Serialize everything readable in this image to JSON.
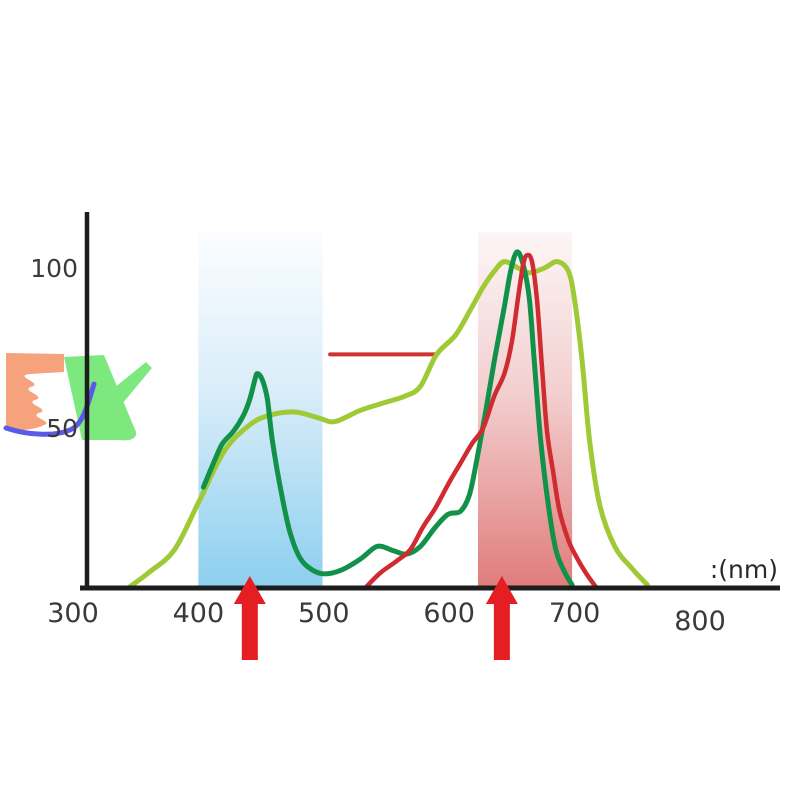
{
  "figure": {
    "x_unit_label": ":(nm)",
    "axis_color": "#1d1d1d",
    "tick_color": "#3a3a3a"
  },
  "watermark": {
    "orange": "#f6a27d",
    "green": "#7de87d",
    "blue": "#5b5ae8"
  },
  "chart_data": {
    "type": "line",
    "title": "",
    "xlabel": ":(nm)",
    "ylabel": "",
    "x_range": [
      300,
      800
    ],
    "y_range": [
      0,
      111
    ],
    "x_ticks": [
      300,
      400,
      500,
      600,
      700,
      800
    ],
    "y_ticks": [
      100,
      50
    ],
    "grid": false,
    "legend": "none",
    "bands": [
      {
        "name": "blue-light-band",
        "x_from": 400,
        "x_to": 499,
        "color_top": "#fbfdff",
        "color_mid": "#d9edf9",
        "color_bottom": "#8ccfee"
      },
      {
        "name": "red-light-band",
        "x_from": 623,
        "x_to": 698,
        "color_top": "#fdf6f6",
        "color_mid": "#f3cfcf",
        "color_bottom": "#e07c7c"
      }
    ],
    "series": [
      {
        "name": "yellow-green-curve",
        "color": "#9fca35",
        "stroke_width": 5,
        "points": [
          [
            344,
            0
          ],
          [
            361,
            5
          ],
          [
            381,
            12
          ],
          [
            401,
            27.5
          ],
          [
            421,
            43
          ],
          [
            441,
            51
          ],
          [
            457,
            54
          ],
          [
            477,
            55
          ],
          [
            497,
            53
          ],
          [
            509,
            52
          ],
          [
            529,
            55.5
          ],
          [
            549,
            58
          ],
          [
            565,
            60
          ],
          [
            577,
            63
          ],
          [
            590,
            73
          ],
          [
            605,
            79
          ],
          [
            617,
            87
          ],
          [
            627,
            94
          ],
          [
            636,
            99
          ],
          [
            644,
            102
          ],
          [
            655,
            100
          ],
          [
            664,
            98.5
          ],
          [
            676,
            100
          ],
          [
            686,
            102
          ],
          [
            695,
            99
          ],
          [
            700,
            90
          ],
          [
            706,
            71
          ],
          [
            712,
            46
          ],
          [
            720,
            26
          ],
          [
            732,
            13
          ],
          [
            746,
            6
          ],
          [
            758,
            1
          ]
        ]
      },
      {
        "name": "dark-green-curve",
        "color": "#12914a",
        "stroke_width": 5,
        "points": [
          [
            404,
            31.5
          ],
          [
            412,
            39
          ],
          [
            419,
            45
          ],
          [
            428,
            49
          ],
          [
            436,
            54
          ],
          [
            441,
            59
          ],
          [
            445,
            65
          ],
          [
            447,
            67
          ],
          [
            451,
            65
          ],
          [
            455,
            59
          ],
          [
            459,
            46
          ],
          [
            466,
            30
          ],
          [
            473,
            17.5
          ],
          [
            481,
            9.4
          ],
          [
            491,
            5.6
          ],
          [
            501,
            4.4
          ],
          [
            514,
            5.6
          ],
          [
            529,
            9
          ],
          [
            540,
            12.5
          ],
          [
            546,
            13
          ],
          [
            556,
            11.6
          ],
          [
            566,
            10.6
          ],
          [
            577,
            13
          ],
          [
            589,
            19
          ],
          [
            599,
            23
          ],
          [
            609,
            24
          ],
          [
            616,
            29
          ],
          [
            622,
            40
          ],
          [
            629,
            55
          ],
          [
            636,
            71
          ],
          [
            644,
            88
          ],
          [
            649,
            99
          ],
          [
            654,
            105
          ],
          [
            659,
            101
          ],
          [
            664,
            90
          ],
          [
            668,
            70
          ],
          [
            673,
            46
          ],
          [
            679,
            26
          ],
          [
            685,
            12
          ],
          [
            692,
            5
          ],
          [
            698,
            1
          ]
        ]
      },
      {
        "name": "red-curve",
        "color": "#cf2b30",
        "stroke_width": 4.5,
        "points": [
          [
            533,
            0
          ],
          [
            545,
            4.7
          ],
          [
            558,
            8.4
          ],
          [
            569,
            12
          ],
          [
            579,
            19
          ],
          [
            589,
            25
          ],
          [
            600,
            33
          ],
          [
            609,
            39
          ],
          [
            618,
            45
          ],
          [
            627,
            50
          ],
          [
            636,
            60
          ],
          [
            644,
            67
          ],
          [
            650,
            77
          ],
          [
            655,
            91
          ],
          [
            659,
            101
          ],
          [
            662,
            104
          ],
          [
            666,
            102
          ],
          [
            670,
            90
          ],
          [
            674,
            69
          ],
          [
            678,
            49
          ],
          [
            683,
            36
          ],
          [
            688,
            24
          ],
          [
            695,
            15
          ],
          [
            701,
            10
          ],
          [
            709,
            4.7
          ],
          [
            717,
            0.3
          ]
        ]
      }
    ],
    "annotations": [
      {
        "type": "h-line",
        "name": "red-reference-line",
        "x_from": 505,
        "x_to": 590,
        "y": 73,
        "color": "#cf3333",
        "stroke_width": 4
      }
    ],
    "arrows": [
      {
        "name": "arrow-blue-peak",
        "x": 441,
        "color": "#e41e22"
      },
      {
        "name": "arrow-red-peak",
        "x": 642,
        "color": "#e41e22"
      }
    ]
  }
}
